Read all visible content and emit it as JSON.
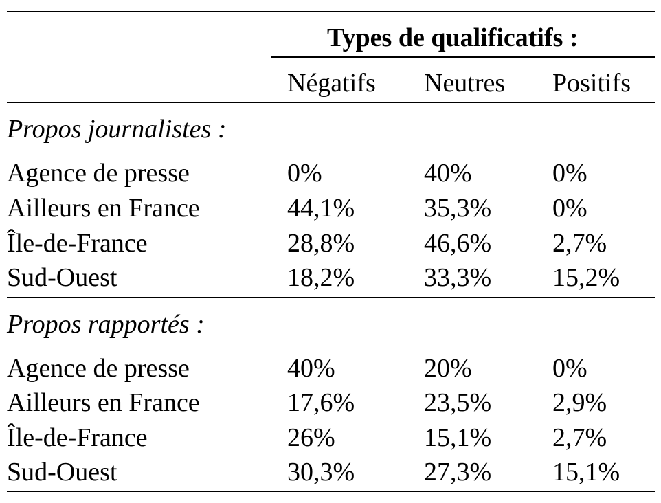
{
  "table": {
    "group_header": "Types de qualificatifs :",
    "columns": [
      "Négatifs",
      "Neutres",
      "Positifs"
    ],
    "sections": [
      {
        "title": "Propos journalistes :",
        "rows": [
          {
            "label": "Agence de presse",
            "values": [
              "0%",
              "40%",
              "0%"
            ]
          },
          {
            "label": "Ailleurs en France",
            "values": [
              "44,1%",
              "35,3%",
              "0%"
            ]
          },
          {
            "label": "Île-de-France",
            "values": [
              "28,8%",
              "46,6%",
              "2,7%"
            ]
          },
          {
            "label": "Sud-Ouest",
            "values": [
              "18,2%",
              "33,3%",
              "15,2%"
            ]
          }
        ]
      },
      {
        "title": "Propos rapportés :",
        "rows": [
          {
            "label": "Agence de presse",
            "values": [
              "40%",
              "20%",
              "0%"
            ]
          },
          {
            "label": "Ailleurs en France",
            "values": [
              "17,6%",
              "23,5%",
              "2,9%"
            ]
          },
          {
            "label": "Île-de-France",
            "values": [
              "26%",
              "15,1%",
              "2,7%"
            ]
          },
          {
            "label": "Sud-Ouest",
            "values": [
              "30,3%",
              "27,3%",
              "15,1%"
            ]
          }
        ]
      }
    ]
  }
}
